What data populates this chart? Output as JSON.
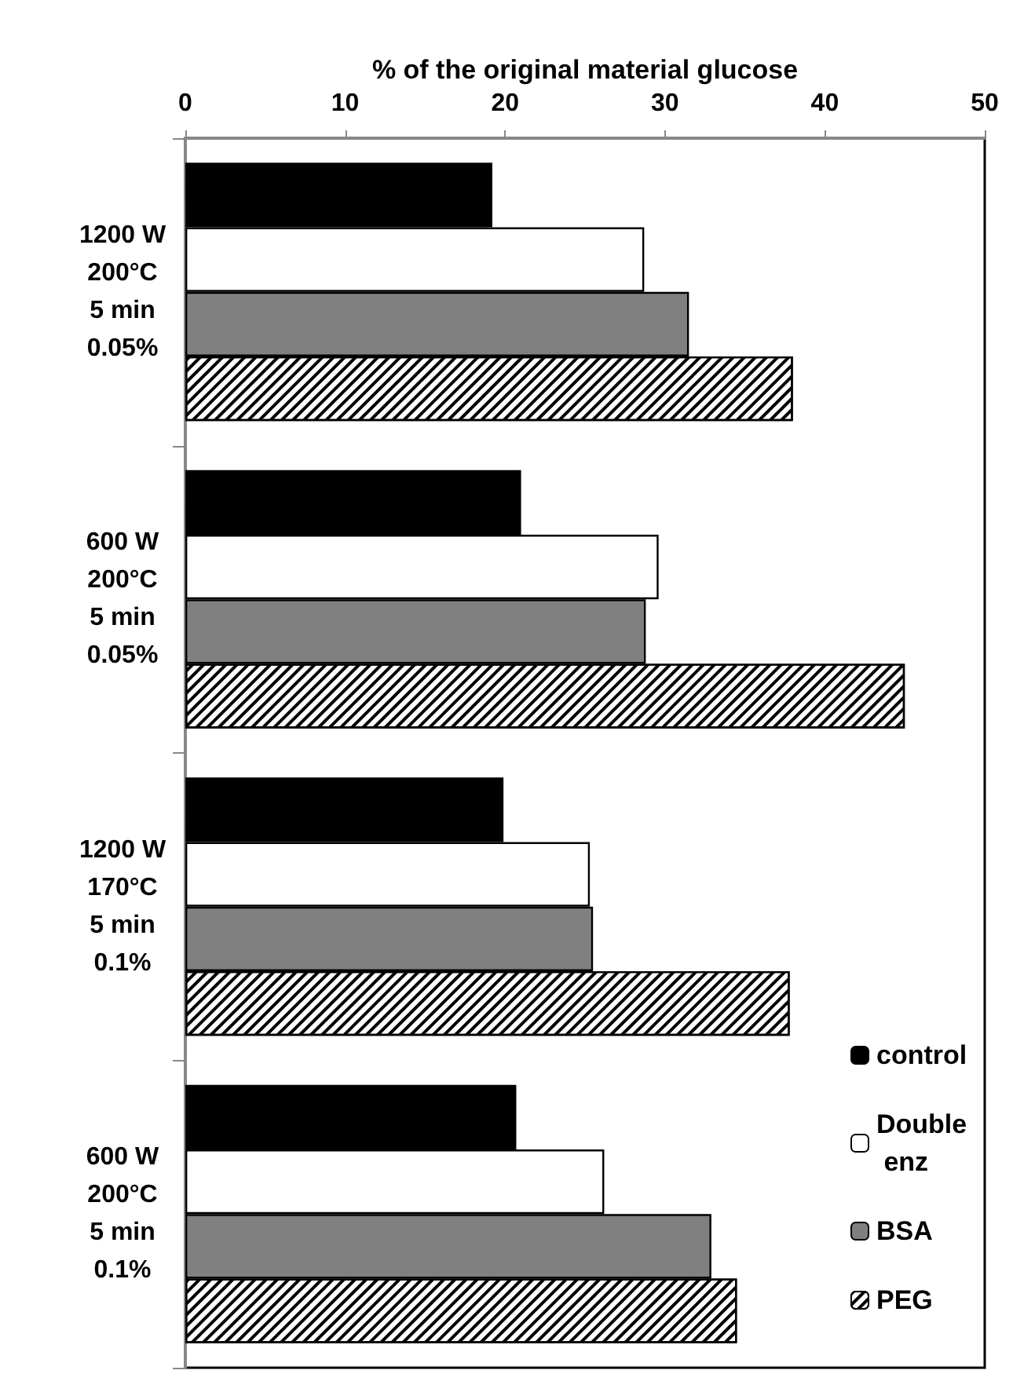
{
  "chart_data": {
    "type": "bar",
    "orientation": "horizontal",
    "xlabel": "% of the original material glucose",
    "categories": [
      "1200 W\n200°C\n5 min\n0.05%",
      "600 W\n200°C\n5 min\n0.05%",
      "1200 W\n170°C\n5 min\n0.1%",
      "600 W\n200°C\n5 min\n0.1%"
    ],
    "series": [
      {
        "name": "control",
        "color": "#000000",
        "values": [
          19.2,
          21.0,
          19.9,
          20.7
        ]
      },
      {
        "name": "Double enz",
        "color": "#ffffff",
        "values": [
          28.7,
          29.6,
          25.3,
          26.2
        ]
      },
      {
        "name": "BSA",
        "color": "#808080",
        "values": [
          31.5,
          28.8,
          25.5,
          32.9
        ]
      },
      {
        "name": "PEG",
        "color": "#ffffff",
        "values": [
          38.0,
          45.0,
          37.8,
          34.5
        ]
      }
    ],
    "xlim": [
      0,
      50
    ],
    "xticks": [
      0,
      10,
      20,
      30,
      40,
      50
    ],
    "grid": false,
    "legend": "bottom right"
  }
}
